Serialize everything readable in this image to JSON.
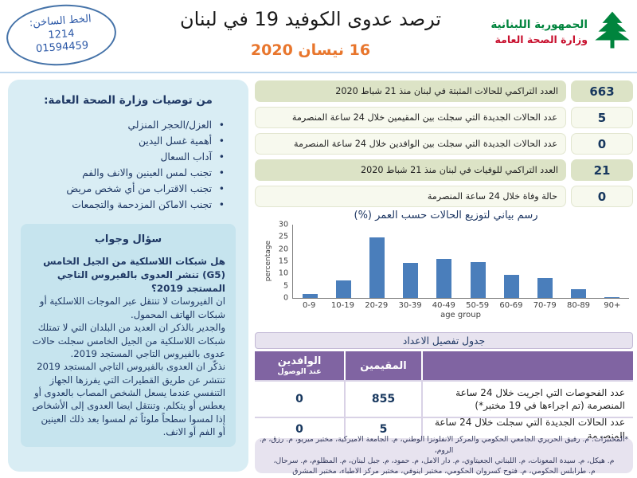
{
  "header": {
    "hotline": {
      "label": "الخط الساخن:",
      "number_short": "1214",
      "number_long": "01594459"
    },
    "title": "ترصد عدوى الكوفيد 19 في لبنان",
    "date": "16 نيسان 2020",
    "logo": {
      "line1": "الجمهورية اللبنانية",
      "line2": "وزارة الصحة العامة"
    }
  },
  "sidebar": {
    "recommendations": {
      "title": "من توصيات وزارة الصحة العامة:",
      "items": [
        "العزل/الحجر المنزلي",
        "أهمية غسل اليدين",
        "آداب السعال",
        "تجنب لمس العينين والانف والفم",
        "تجنب الاقتراب من أي شخص مريض",
        "تجنب الاماكن المزدحمة والتجمعات"
      ]
    },
    "qa": {
      "title": "سؤال وجواب",
      "question": "هل شبكات اللاسلكية من الجيل الخامس (G5) تنشر العدوى بالفيروس التاجي المستجد 2019؟",
      "answer_paragraphs": [
        "ان الفيروسات لا تنتقل عبر الموجات اللاسلكية أو شبكات الهاتف المحمول.",
        "والجدير بالذكر ان العديد من البلدان التي لا تمتلك شبكات اللاسلكية من الجيل الخامس سجلت حالات عدوى بالفيروس التاجي المستجد 2019.",
        "نذكّر ان العدوى بالفيروس التاجي المستجد 2019 تنتشر عن طريق القطيرات التي يفرزها الجهاز التنفسي عندما يسعل الشخص المصاب بالعدوى أو يعطس أو يتكلم. وتنتقل ايضا العدوى إلى الأشخاص إذا لمسوا سطحاً ملوثاً ثم لمسوا بعد ذلك العينين أو الفم أو الانف."
      ]
    }
  },
  "stats": [
    {
      "label": "العدد التراكمي للحالات المثبتة في لبنان منذ 21 شباط 2020",
      "value": "663"
    },
    {
      "label": "عدد الحالات الجديدة التي سجلت بين المقيمين خلال 24 ساعة المنصرمة",
      "value": "5"
    },
    {
      "label": "عدد الحالات الجديدة التي سجلت بين الوافدين خلال 24 ساعة المنصرمة",
      "value": "0"
    },
    {
      "label": "العدد التراكمي للوفيات في لبنان منذ 21 شباط 2020",
      "value": "21"
    },
    {
      "label": "حالة وفاة خلال 24 ساعة المنصرمة",
      "value": "0"
    }
  ],
  "chart_data": {
    "type": "bar",
    "title": "رسم بياني لتوزيع الحالات حسب العمر (%)",
    "categories": [
      "0-9",
      "10-19",
      "20-29",
      "30-39",
      "40-49",
      "50-59",
      "60-69",
      "70-79",
      "80-89",
      "90+"
    ],
    "values": [
      1.6,
      7.2,
      24.8,
      14.2,
      16,
      14.8,
      9.4,
      8.2,
      3.5,
      0.4
    ],
    "xlabel": "age group",
    "ylabel": "percentage",
    "ylim": [
      0,
      30
    ],
    "yticks": [
      0,
      5,
      10,
      15,
      20,
      25,
      30
    ],
    "legend": "none",
    "grid": false,
    "bar_color": "#4a7ebb"
  },
  "detail_table": {
    "title": "جدول تفصيل الاعداد",
    "columns": {
      "residents": "المقيمين",
      "arrivals_line1": "الوافدين",
      "arrivals_line2": "عند الوصول"
    },
    "rows": [
      {
        "label": "عدد الفحوصات التي اجريت خلال 24 ساعة المنصرمة (تم اجراءها في 19 مختبر*)",
        "residents": "855",
        "arrivals": "0"
      },
      {
        "label": "عدد الحالات الجديدة التي سجلت خلال 24 ساعة المنصرمة",
        "residents": "5",
        "arrivals": "0"
      }
    ]
  },
  "footnote": {
    "lines": [
      "*المختبرات: م. رفيق الحريري الجامعي الحكومي والمركز الانفلونزا الوطني، م. الجامعة الاميركية، مختبر ميريو، م. رزق، م. الروم،",
      "م. هيكل، م. سيدة المعونات، م. اللبناني الجعيتاوي، م. دار الامل، م. حمود، م. جبل لبنان، م. المظلوم، م. سرحال،",
      "م. طرابلس الحكومي، م. فتوح كسروان الحكومي، مختبر اينوفي، مختبر مركز الاطباء، مختبر المشرق"
    ]
  },
  "colors": {
    "accent-orange": "#e8762d",
    "navy": "#17375e",
    "text-navy": "#1f3864",
    "logo-green": "#00843d",
    "logo-red": "#c8102e",
    "olive": "#dce3c6",
    "ivory": "#f7f9ee",
    "olive-border": "#e2e6d0",
    "purple": "#8064a2",
    "lavender": "#e7e3ef",
    "lavender-border": "#c3b9d6",
    "lavender-line": "#d9d2e6",
    "sidebar-blue": "#d9edf4",
    "qa-blue": "#c6e4ee",
    "bar-blue": "#4a7ebb",
    "hotline-blue": "#2e5aa8",
    "hotline-border": "#4472a8",
    "header-rule": "#bdd7ee",
    "axis-gray": "#7f7f7f"
  }
}
